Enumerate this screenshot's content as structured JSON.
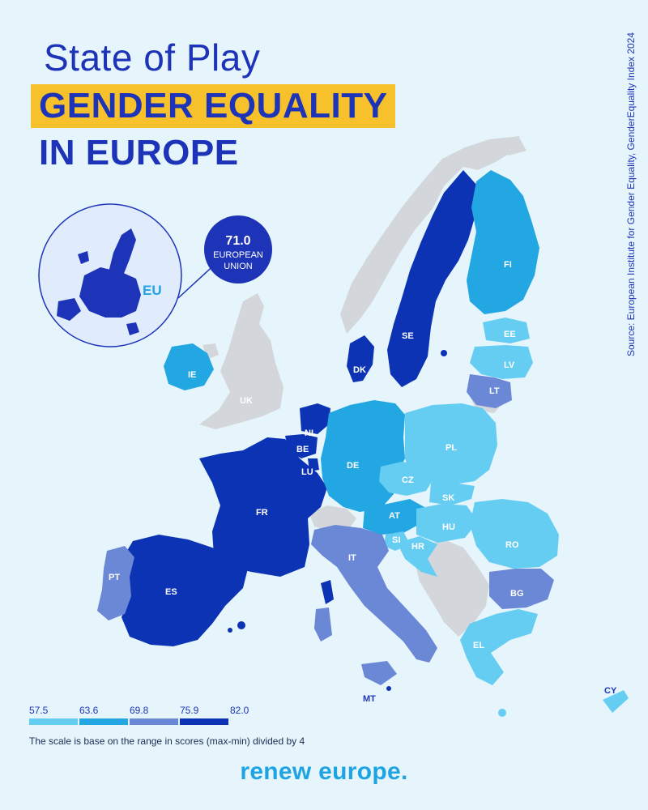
{
  "header": {
    "title_line1": "State of Play",
    "title_line2": "GENDER EQUALITY",
    "title_line3": "IN EUROPE"
  },
  "source": "Source: European Institute for Gender Equality, GenderEquality Index 2024",
  "eu_summary": {
    "score": "71.0",
    "label_line1": "EUROPEAN",
    "label_line2": "UNION",
    "inset_label": "EU"
  },
  "legend": {
    "ticks": [
      "57.5",
      "63.6",
      "69.8",
      "75.9",
      "82.0"
    ],
    "colors": [
      "#66cdf2",
      "#22a7e2",
      "#6a88d6",
      "#2f5ac2",
      "#0d33b5"
    ],
    "note": "The scale is base on the range in scores (max-min) divided by 4"
  },
  "colors": {
    "band_1": "#66cdf2",
    "band_2": "#22a7e2",
    "band_3": "#6a88d6",
    "band_4": "#0d33b5",
    "no_data": "#d3d7dc",
    "sea": "#e6f5fb",
    "title_blue": "#1d34b8",
    "highlight_yellow": "#f6c12b"
  },
  "countries": {
    "FI": "FI",
    "SE": "SE",
    "EE": "EE",
    "LV": "LV",
    "LT": "LT",
    "DK": "DK",
    "IE": "IE",
    "UK": "UK",
    "NL": "NL",
    "BE": "BE",
    "LU": "LU",
    "DE": "DE",
    "PL": "PL",
    "CZ": "CZ",
    "SK": "SK",
    "AT": "AT",
    "HU": "HU",
    "SI": "SI",
    "HR": "HR",
    "RO": "RO",
    "FR": "FR",
    "IT": "IT",
    "BG": "BG",
    "PT": "PT",
    "ES": "ES",
    "EL": "EL",
    "MT": "MT",
    "CY": "CY"
  },
  "brand": "renew europe."
}
